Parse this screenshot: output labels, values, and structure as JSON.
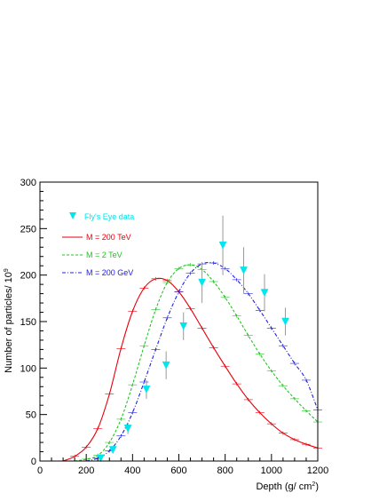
{
  "chart_data": {
    "type": "line",
    "xlabel": "Depth (g/ cm",
    "xlabel_sup": "2",
    "xlabel_end": ")",
    "ylabel": "Number of particles/ 10",
    "ylabel_sup": "9",
    "xlim": [
      0,
      1200
    ],
    "ylim": [
      0,
      300
    ],
    "x_ticks": [
      0,
      200,
      400,
      600,
      800,
      1000,
      1200
    ],
    "y_ticks": [
      0,
      50,
      100,
      150,
      200,
      250,
      300
    ],
    "grid": false,
    "legend_position": "top-left",
    "colors": {
      "data": "#00e5ee",
      "m200tev": "#e8000b",
      "m2tev": "#22c422",
      "m200gev": "#2020dd",
      "errorbar": "#999999"
    },
    "observed": {
      "name": "Fly's Eye data",
      "points": [
        {
          "x": 262,
          "y": 3,
          "err": 3
        },
        {
          "x": 315,
          "y": 12,
          "err": 4
        },
        {
          "x": 380,
          "y": 35,
          "err": 6
        },
        {
          "x": 460,
          "y": 77,
          "err": 10
        },
        {
          "x": 545,
          "y": 103,
          "err": 15
        },
        {
          "x": 620,
          "y": 145,
          "err": 15
        },
        {
          "x": 700,
          "y": 192,
          "err": 22
        },
        {
          "x": 790,
          "y": 232,
          "err": 32
        },
        {
          "x": 880,
          "y": 205,
          "err": 25
        },
        {
          "x": 970,
          "y": 181,
          "err": 20
        },
        {
          "x": 1060,
          "y": 150,
          "err": 15
        }
      ]
    },
    "series": [
      {
        "name": "M = 200 TeV",
        "dash": "solid",
        "x": [
          100,
          150,
          200,
          250,
          300,
          350,
          400,
          450,
          500,
          550,
          600,
          650,
          700,
          750,
          800,
          850,
          900,
          950,
          1000,
          1050,
          1100,
          1150,
          1200
        ],
        "y": [
          0,
          5,
          15,
          35,
          72,
          121,
          161,
          186,
          196,
          194,
          182,
          164,
          143,
          122,
          102,
          83,
          66,
          52,
          40,
          30,
          23,
          18,
          14
        ]
      },
      {
        "name": "M = 2 TeV",
        "dash": "dashed",
        "x": [
          150,
          200,
          250,
          300,
          350,
          400,
          450,
          500,
          550,
          600,
          650,
          700,
          750,
          800,
          850,
          900,
          950,
          1000,
          1050,
          1100,
          1150,
          1200
        ],
        "y": [
          0,
          2,
          6,
          20,
          45,
          82,
          124,
          163,
          192,
          207,
          211,
          206,
          193,
          176,
          156,
          135,
          115,
          97,
          81,
          67,
          54,
          42
        ]
      },
      {
        "name": "M = 200 GeV",
        "dash": "dashdot",
        "x": [
          200,
          250,
          300,
          350,
          400,
          450,
          500,
          550,
          600,
          650,
          700,
          750,
          800,
          850,
          900,
          950,
          1000,
          1050,
          1100,
          1150,
          1200
        ],
        "y": [
          0,
          3,
          11,
          27,
          52,
          85,
          120,
          154,
          182,
          202,
          212,
          213,
          207,
          195,
          180,
          162,
          143,
          124,
          105,
          87,
          55
        ]
      }
    ]
  }
}
